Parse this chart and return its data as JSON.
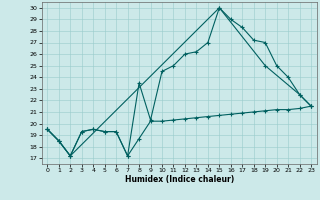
{
  "xlabel": "Humidex (Indice chaleur)",
  "xlim": [
    -0.5,
    23.5
  ],
  "ylim": [
    16.5,
    30.5
  ],
  "yticks": [
    17,
    18,
    19,
    20,
    21,
    22,
    23,
    24,
    25,
    26,
    27,
    28,
    29,
    30
  ],
  "xticks": [
    0,
    1,
    2,
    3,
    4,
    5,
    6,
    7,
    8,
    9,
    10,
    11,
    12,
    13,
    14,
    15,
    16,
    17,
    18,
    19,
    20,
    21,
    22,
    23
  ],
  "bg_color": "#cce9e9",
  "line_color": "#006060",
  "grid_color": "#99cccc",
  "line1_x": [
    0,
    1,
    2,
    3,
    4,
    5,
    6,
    7,
    8,
    9,
    10,
    11,
    12,
    13,
    14,
    15,
    16,
    17,
    18,
    19,
    20,
    21,
    22,
    23
  ],
  "line1_y": [
    19.5,
    18.5,
    17.2,
    19.3,
    19.5,
    19.3,
    19.3,
    17.2,
    18.7,
    20.2,
    20.2,
    20.3,
    20.4,
    20.5,
    20.6,
    20.7,
    20.8,
    20.9,
    21.0,
    21.1,
    21.2,
    21.2,
    21.3,
    21.5
  ],
  "line2_x": [
    0,
    1,
    2,
    3,
    4,
    5,
    6,
    7,
    8,
    9,
    10,
    11,
    12,
    13,
    14,
    15,
    16,
    17,
    18,
    19,
    20,
    21,
    22,
    23
  ],
  "line2_y": [
    19.5,
    18.5,
    17.2,
    19.3,
    19.5,
    19.3,
    19.3,
    17.2,
    23.5,
    20.3,
    24.5,
    25.0,
    26.0,
    26.2,
    27.0,
    30.0,
    29.0,
    28.3,
    27.2,
    27.0,
    25.0,
    24.0,
    22.5,
    21.5
  ],
  "line3_x": [
    0,
    1,
    2,
    15,
    19,
    22,
    23
  ],
  "line3_y": [
    19.5,
    18.5,
    17.2,
    30.0,
    25.0,
    22.5,
    21.5
  ]
}
